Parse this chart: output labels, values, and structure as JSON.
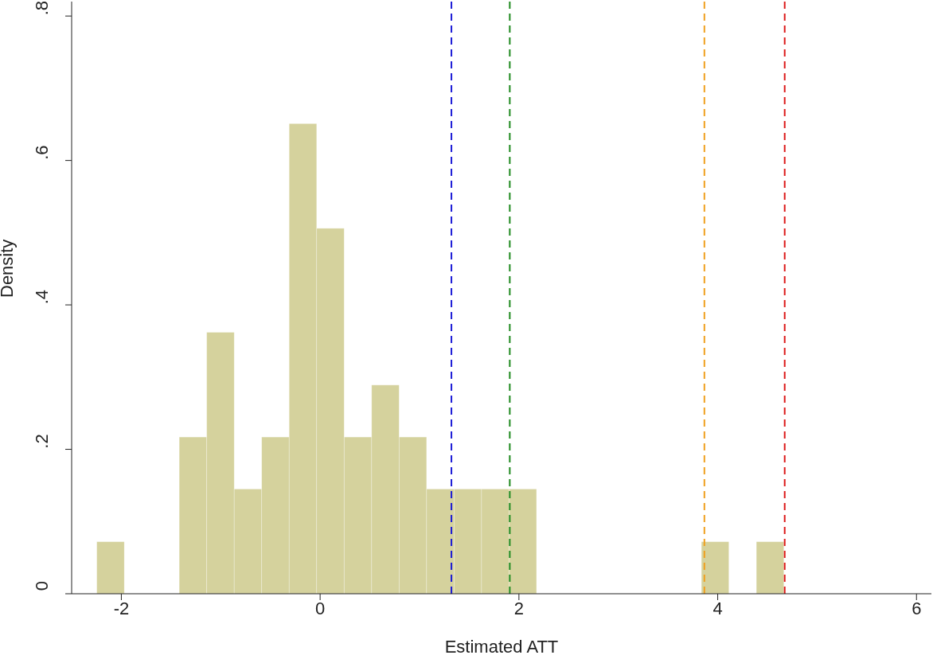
{
  "chart_data": {
    "type": "histogram",
    "xlabel": "Estimated ATT",
    "ylabel": "Density",
    "bins": [
      -2.247,
      -1.9705,
      -1.694,
      -1.4175,
      -1.141,
      -0.8645,
      -0.588,
      -0.3115,
      -0.035,
      0.2415,
      0.518,
      0.7945,
      1.071,
      1.3475,
      1.624,
      1.9005,
      2.177,
      2.4535,
      2.73,
      3.0065,
      3.283,
      3.5595,
      3.836,
      4.1125,
      4.389,
      4.6655
    ],
    "values": [
      0.072,
      0,
      0,
      0.217,
      0.362,
      0.145,
      0.217,
      0.651,
      0.506,
      0.217,
      0.289,
      0.217,
      0.145,
      0.145,
      0.145,
      0.145,
      0,
      0,
      0,
      0,
      0,
      0,
      0.072,
      0,
      0.072
    ],
    "color": "#d5d29d",
    "xlim": [
      -2.5,
      6.15
    ],
    "xticks": [
      -2,
      0,
      2,
      4,
      6
    ],
    "ylim": [
      0,
      0.82
    ],
    "yticks": [
      {
        "value": 0,
        "label": "0"
      },
      {
        "value": 0.2,
        "label": ".2"
      },
      {
        "value": 0.4,
        "label": ".4"
      },
      {
        "value": 0.6,
        "label": ".6"
      },
      {
        "value": 0.8,
        "label": ".8"
      }
    ],
    "ref_lines": [
      {
        "axis": "x",
        "value": 1.321,
        "color": "#1a1ad6",
        "line_style": "dashed"
      },
      {
        "axis": "x",
        "value": 1.908,
        "color": "#1f8a1f",
        "line_style": "dashed"
      },
      {
        "axis": "x",
        "value": 3.866,
        "color": "#f0a020",
        "line_style": "dashed"
      },
      {
        "axis": "x",
        "value": 4.674,
        "color": "#dd1a1a",
        "line_style": "dashed"
      }
    ]
  }
}
